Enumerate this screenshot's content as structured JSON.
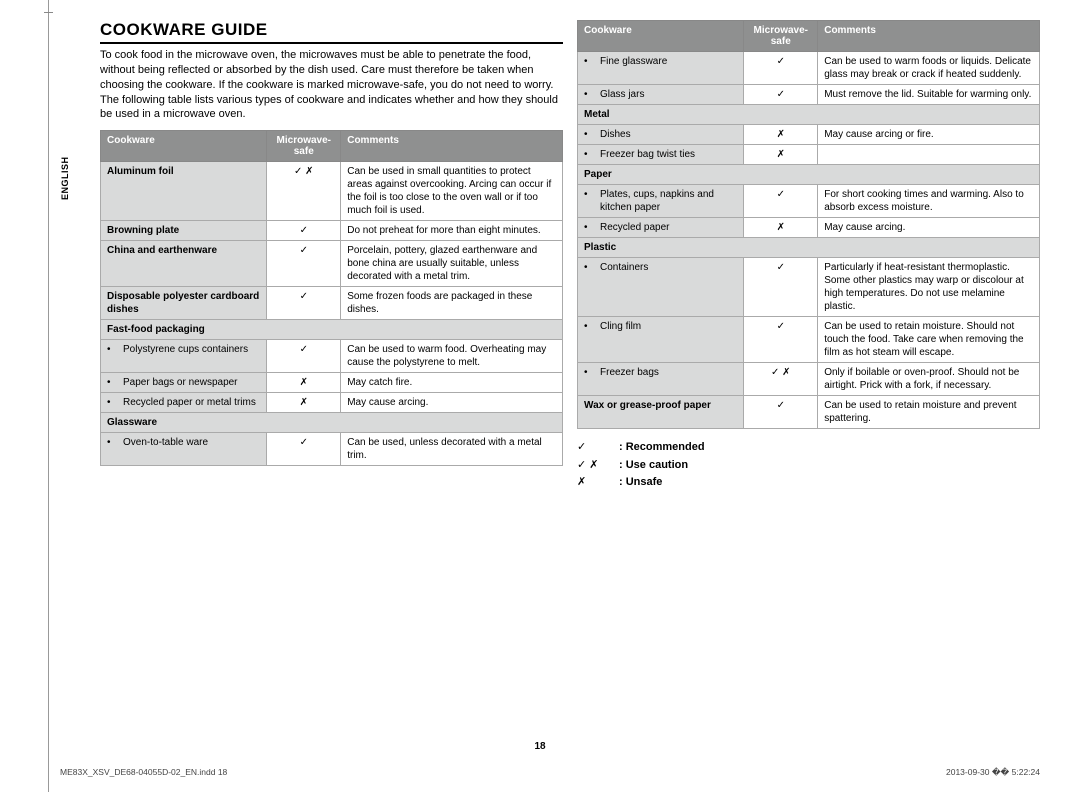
{
  "lang_tab": "ENGLISH",
  "title": "COOKWARE GUIDE",
  "intro": "To cook food in the microwave oven, the microwaves must be able to penetrate the food, without being reflected or absorbed by the dish used. Care must therefore be taken when choosing the cookware. If the cookware is marked microwave-safe, you do not need to worry.\nThe following table lists various types of cookware and indicates whether and how they should be used in a microwave oven.",
  "headers": {
    "cookware": "Cookware",
    "safe": "Microwave-safe",
    "comments": "Comments"
  },
  "symbols": {
    "yes": "✓",
    "no": "✗",
    "caution": "✓ ✗"
  },
  "left_rows": [
    {
      "type": "cat",
      "cook": "Aluminum foil",
      "safe": "caution",
      "comm": "Can be used in small quantities to protect areas against overcooking. Arcing can occur if the foil is too close to the oven wall or if too much foil is used."
    },
    {
      "type": "cat",
      "cook": "Browning plate",
      "safe": "yes",
      "comm": "Do not preheat for more than eight minutes."
    },
    {
      "type": "cat",
      "cook": "China and earthenware",
      "safe": "yes",
      "comm": "Porcelain, pottery, glazed earthenware and bone china are usually suitable, unless decorated with a metal trim."
    },
    {
      "type": "cat",
      "cook": "Disposable polyester cardboard dishes",
      "safe": "yes",
      "comm": "Some frozen foods are packaged in these dishes."
    },
    {
      "type": "catspan",
      "cook": "Fast-food packaging"
    },
    {
      "type": "sub",
      "cook": "Polystyrene cups containers",
      "safe": "yes",
      "comm": "Can be used to warm food. Overheating may cause the polystyrene to melt."
    },
    {
      "type": "sub",
      "cook": "Paper bags or newspaper",
      "safe": "no",
      "comm": "May catch fire."
    },
    {
      "type": "sub",
      "cook": "Recycled paper or metal trims",
      "safe": "no",
      "comm": "May cause arcing."
    },
    {
      "type": "catspan",
      "cook": "Glassware"
    },
    {
      "type": "sub",
      "cook": "Oven-to-table ware",
      "safe": "yes",
      "comm": "Can be used, unless decorated with a metal trim."
    }
  ],
  "right_rows": [
    {
      "type": "sub",
      "cook": "Fine glassware",
      "safe": "yes",
      "comm": "Can be used to warm foods or liquids. Delicate glass may break or crack if heated suddenly."
    },
    {
      "type": "sub",
      "cook": "Glass jars",
      "safe": "yes",
      "comm": "Must remove the lid. Suitable for warming only."
    },
    {
      "type": "catspan",
      "cook": "Metal"
    },
    {
      "type": "sub",
      "cook": "Dishes",
      "safe": "no",
      "comm": "May cause arcing or fire."
    },
    {
      "type": "sub",
      "cook": "Freezer bag twist ties",
      "safe": "no",
      "comm": ""
    },
    {
      "type": "catspan",
      "cook": "Paper"
    },
    {
      "type": "sub",
      "cook": "Plates, cups, napkins and kitchen paper",
      "safe": "yes",
      "comm": "For short cooking times and warming. Also to absorb excess moisture."
    },
    {
      "type": "sub",
      "cook": "Recycled paper",
      "safe": "no",
      "comm": "May cause arcing."
    },
    {
      "type": "catspan",
      "cook": "Plastic"
    },
    {
      "type": "sub",
      "cook": "Containers",
      "safe": "yes",
      "comm": "Particularly if heat-resistant thermoplastic. Some other plastics may warp or discolour at high temperatures. Do not use melamine plastic."
    },
    {
      "type": "sub",
      "cook": "Cling film",
      "safe": "yes",
      "comm": "Can be used to retain moisture. Should not touch the food. Take care when removing the film as hot steam will escape."
    },
    {
      "type": "sub",
      "cook": "Freezer bags",
      "safe": "caution",
      "comm": "Only if boilable or oven-proof. Should not be airtight. Prick with a fork, if necessary."
    },
    {
      "type": "cat",
      "cook": "Wax or grease-proof paper",
      "safe": "yes",
      "comm": "Can be used to retain moisture and prevent spattering."
    }
  ],
  "legend": [
    {
      "sym": "yes",
      "label": ": Recommended"
    },
    {
      "sym": "caution",
      "label": ": Use caution"
    },
    {
      "sym": "no",
      "label": ": Unsafe"
    }
  ],
  "page_num": "18",
  "footer_left": "ME83X_XSV_DE68-04055D-02_EN.indd   18",
  "footer_right": "2013-09-30   �� 5:22:24"
}
